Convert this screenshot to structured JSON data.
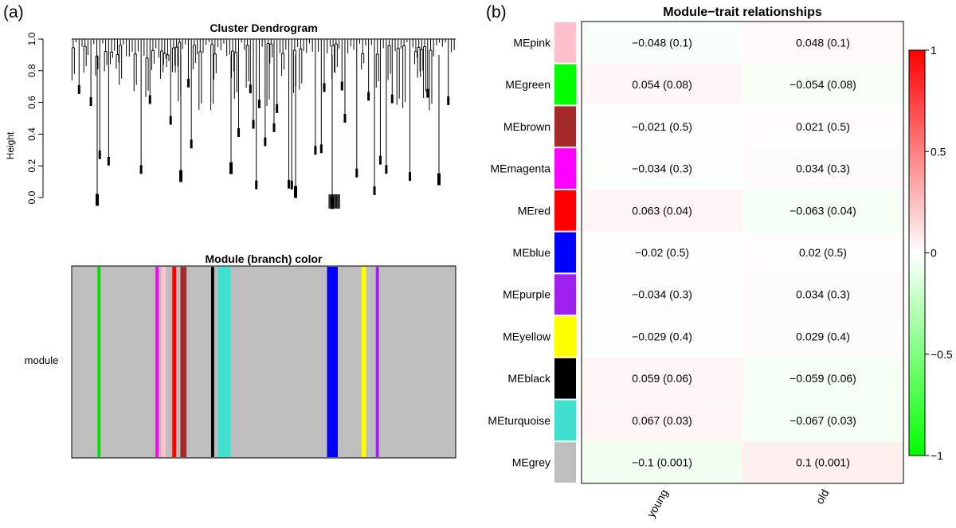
{
  "panel_a_label": "(a)",
  "panel_b_label": "(b)",
  "chart_data": [
    {
      "type": "dendrogram",
      "title": "Cluster Dendrogram",
      "ylabel": "Height",
      "ylim": [
        0.0,
        1.0
      ],
      "yticks": [
        "0.0",
        "0.2",
        "0.4",
        "0.6",
        "0.8",
        "1.0"
      ],
      "color_bar": {
        "title": "Module (branch) color",
        "row_label": "module",
        "background": "#bebebe",
        "stripes": [
          {
            "pos": 0.067,
            "width": 0.008,
            "color": "#00e000"
          },
          {
            "pos": 0.218,
            "width": 0.008,
            "color": "#ff00ff"
          },
          {
            "pos": 0.233,
            "width": 0.012,
            "color": "#ffc0cb"
          },
          {
            "pos": 0.262,
            "width": 0.01,
            "color": "#ff0000"
          },
          {
            "pos": 0.283,
            "width": 0.016,
            "color": "#a52a2a"
          },
          {
            "pos": 0.363,
            "width": 0.008,
            "color": "#000000"
          },
          {
            "pos": 0.38,
            "width": 0.034,
            "color": "#40e0d0"
          },
          {
            "pos": 0.665,
            "width": 0.028,
            "color": "#0000ff"
          },
          {
            "pos": 0.755,
            "width": 0.012,
            "color": "#ffff00"
          },
          {
            "pos": 0.792,
            "width": 0.008,
            "color": "#a020f0"
          }
        ]
      }
    },
    {
      "type": "heatmap",
      "title": "Module−trait relationships",
      "rows": [
        "MEpink",
        "MEgreen",
        "MEbrown",
        "MEmagenta",
        "MEred",
        "MEblue",
        "MEpurple",
        "MEyellow",
        "MEblack",
        "MEturquoise",
        "MEgrey"
      ],
      "row_colors": [
        "#ffc0cb",
        "#00ff00",
        "#a52a2a",
        "#ff00ff",
        "#ff0000",
        "#0000ff",
        "#a020f0",
        "#ffff00",
        "#000000",
        "#40e0d0",
        "#bebebe"
      ],
      "columns": [
        "young",
        "old"
      ],
      "values": [
        [
          -0.048,
          0.048
        ],
        [
          0.054,
          -0.054
        ],
        [
          -0.021,
          0.021
        ],
        [
          -0.034,
          0.034
        ],
        [
          0.063,
          -0.063
        ],
        [
          -0.02,
          0.02
        ],
        [
          -0.034,
          0.034
        ],
        [
          -0.029,
          0.029
        ],
        [
          0.059,
          -0.059
        ],
        [
          0.067,
          -0.067
        ],
        [
          -0.1,
          0.1
        ]
      ],
      "cell_labels": [
        [
          "−0.048 (0.1)",
          "0.048 (0.1)"
        ],
        [
          "0.054 (0.08)",
          "−0.054 (0.08)"
        ],
        [
          "−0.021 (0.5)",
          "0.021 (0.5)"
        ],
        [
          "−0.034 (0.3)",
          "0.034 (0.3)"
        ],
        [
          "0.063 (0.04)",
          "−0.063 (0.04)"
        ],
        [
          "−0.02 (0.5)",
          "0.02 (0.5)"
        ],
        [
          "−0.034 (0.3)",
          "0.034 (0.3)"
        ],
        [
          "−0.029 (0.4)",
          "0.029 (0.4)"
        ],
        [
          "0.059 (0.06)",
          "−0.059 (0.06)"
        ],
        [
          "0.067 (0.03)",
          "−0.067 (0.03)"
        ],
        [
          "−0.1 (0.001)",
          "0.1 (0.001)"
        ]
      ],
      "color_scale": {
        "range": [
          -1,
          1
        ],
        "ticks": [
          "1",
          "0.5",
          "0",
          "−0.5",
          "−1"
        ],
        "tick_values": [
          1,
          0.5,
          0,
          -0.5,
          -1
        ],
        "low_color": "#00ff00",
        "mid_color": "#ffffff",
        "high_color": "#ff0000"
      }
    }
  ]
}
